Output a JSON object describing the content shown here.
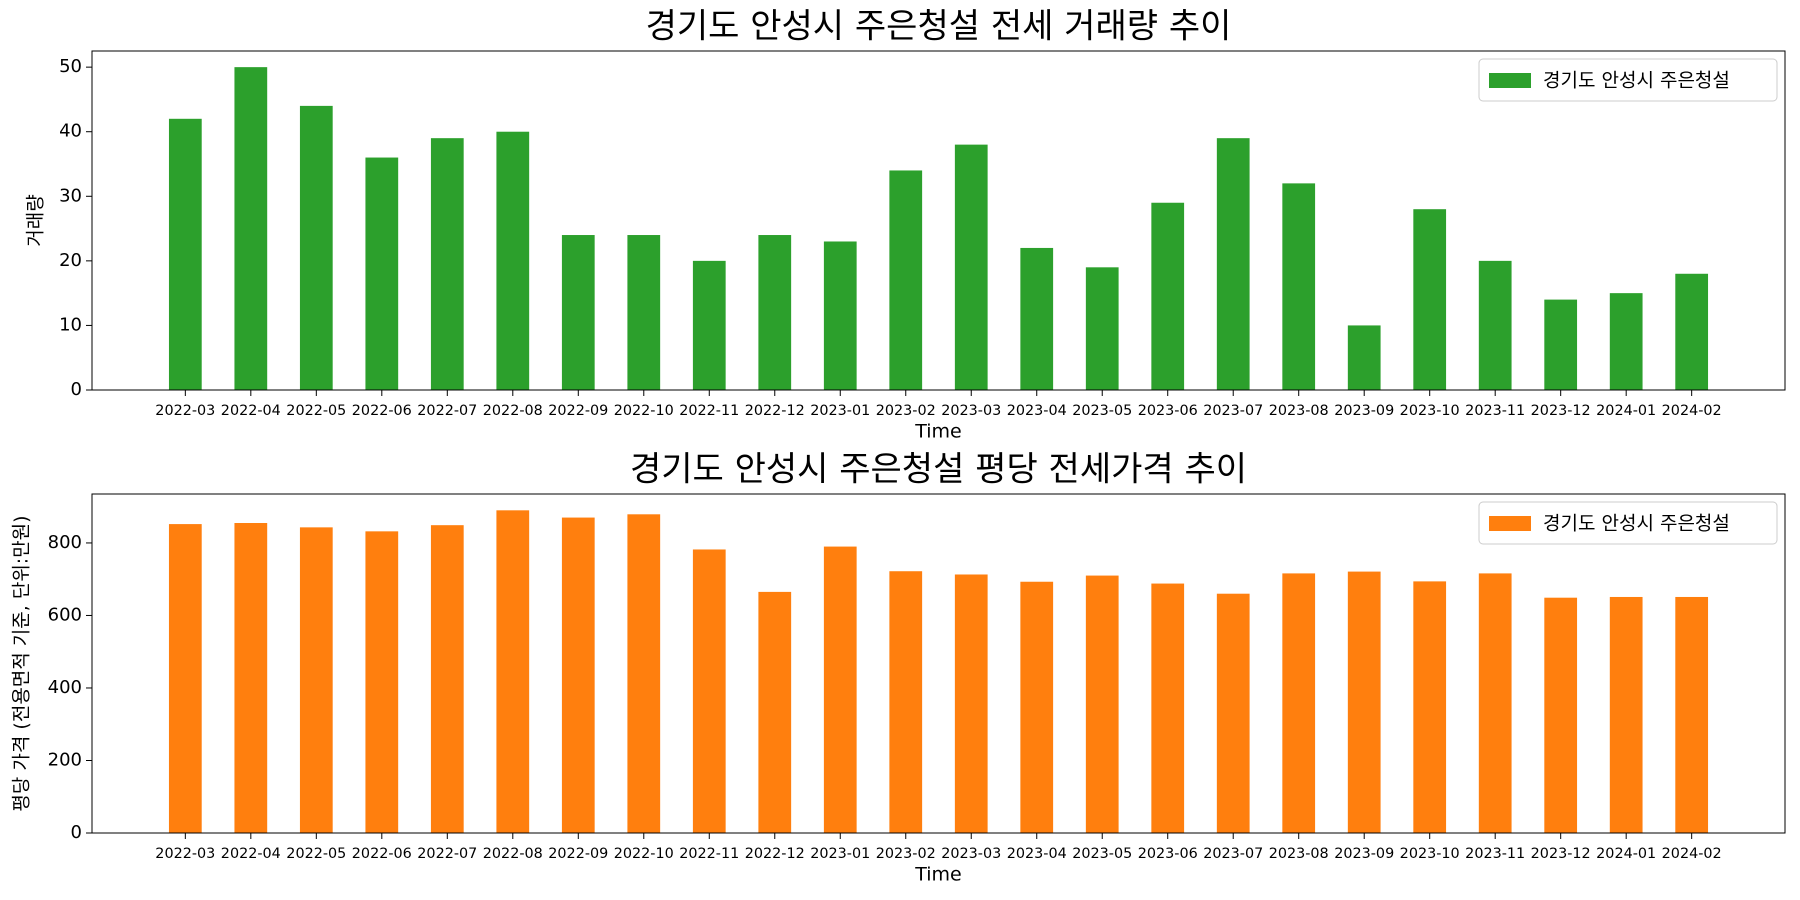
{
  "chart_data": [
    {
      "type": "bar",
      "title": "경기도 안성시 주은청설 전세 거래량 추이",
      "xlabel": "Time",
      "ylabel": "거래량",
      "ylim": [
        0,
        52.5
      ],
      "yticks": [
        0,
        10,
        20,
        30,
        40,
        50
      ],
      "color": "#2ca02c",
      "legend_position": "top-right",
      "categories": [
        "2022-03",
        "2022-04",
        "2022-05",
        "2022-06",
        "2022-07",
        "2022-08",
        "2022-09",
        "2022-10",
        "2022-11",
        "2022-12",
        "2023-01",
        "2023-02",
        "2023-03",
        "2023-04",
        "2023-05",
        "2023-06",
        "2023-07",
        "2023-08",
        "2023-09",
        "2023-10",
        "2023-11",
        "2023-12",
        "2024-01",
        "2024-02"
      ],
      "series": [
        {
          "name": "경기도 안성시 주은청설",
          "values": [
            42,
            50,
            44,
            36,
            39,
            40,
            24,
            24,
            20,
            24,
            23,
            34,
            38,
            22,
            19,
            29,
            39,
            32,
            10,
            28,
            20,
            14,
            15,
            18
          ]
        }
      ]
    },
    {
      "type": "bar",
      "title": "경기도 안성시 주은청설 평당 전세가격 추이",
      "xlabel": "Time",
      "ylabel": "평당 가격 (전용면적 기준, 단위:만원)",
      "ylim": [
        0,
        935
      ],
      "yticks": [
        0,
        200,
        400,
        600,
        800
      ],
      "color": "#ff7f0e",
      "legend_position": "top-right",
      "categories": [
        "2022-03",
        "2022-04",
        "2022-05",
        "2022-06",
        "2022-07",
        "2022-08",
        "2022-09",
        "2022-10",
        "2022-11",
        "2022-12",
        "2023-01",
        "2023-02",
        "2023-03",
        "2023-04",
        "2023-05",
        "2023-06",
        "2023-07",
        "2023-08",
        "2023-09",
        "2023-10",
        "2023-11",
        "2023-12",
        "2024-01",
        "2024-02"
      ],
      "series": [
        {
          "name": "경기도 안성시 주은청설",
          "values": [
            852,
            855,
            843,
            832,
            849,
            890,
            870,
            879,
            782,
            665,
            790,
            722,
            713,
            693,
            710,
            688,
            660,
            716,
            721,
            694,
            716,
            649,
            651,
            651
          ]
        }
      ]
    }
  ]
}
